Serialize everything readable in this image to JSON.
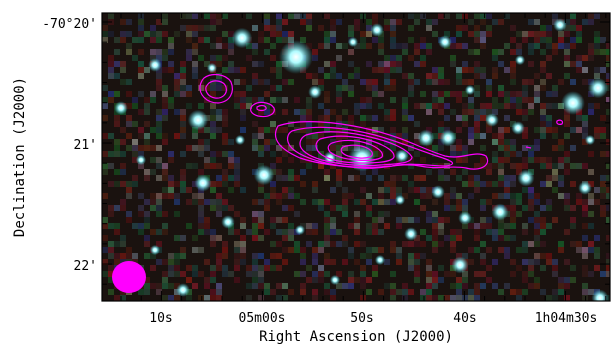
{
  "figure": {
    "x_axis_title": "Right Ascension (J2000)",
    "y_axis_title": "Declination (J2000)",
    "x_ticks": [
      "10s",
      "05m00s",
      "50s",
      "40s",
      "1h04m30s"
    ],
    "y_ticks": [
      "-70°20'",
      "21'",
      "22'"
    ],
    "colors": {
      "contour": "#ff00ff",
      "beam": "#ff00ff",
      "sky_background": "#1a120f",
      "star_cyan": "#8ff6ff",
      "frame": "#000000"
    },
    "contour_levels": 6,
    "beam_present": true
  }
}
